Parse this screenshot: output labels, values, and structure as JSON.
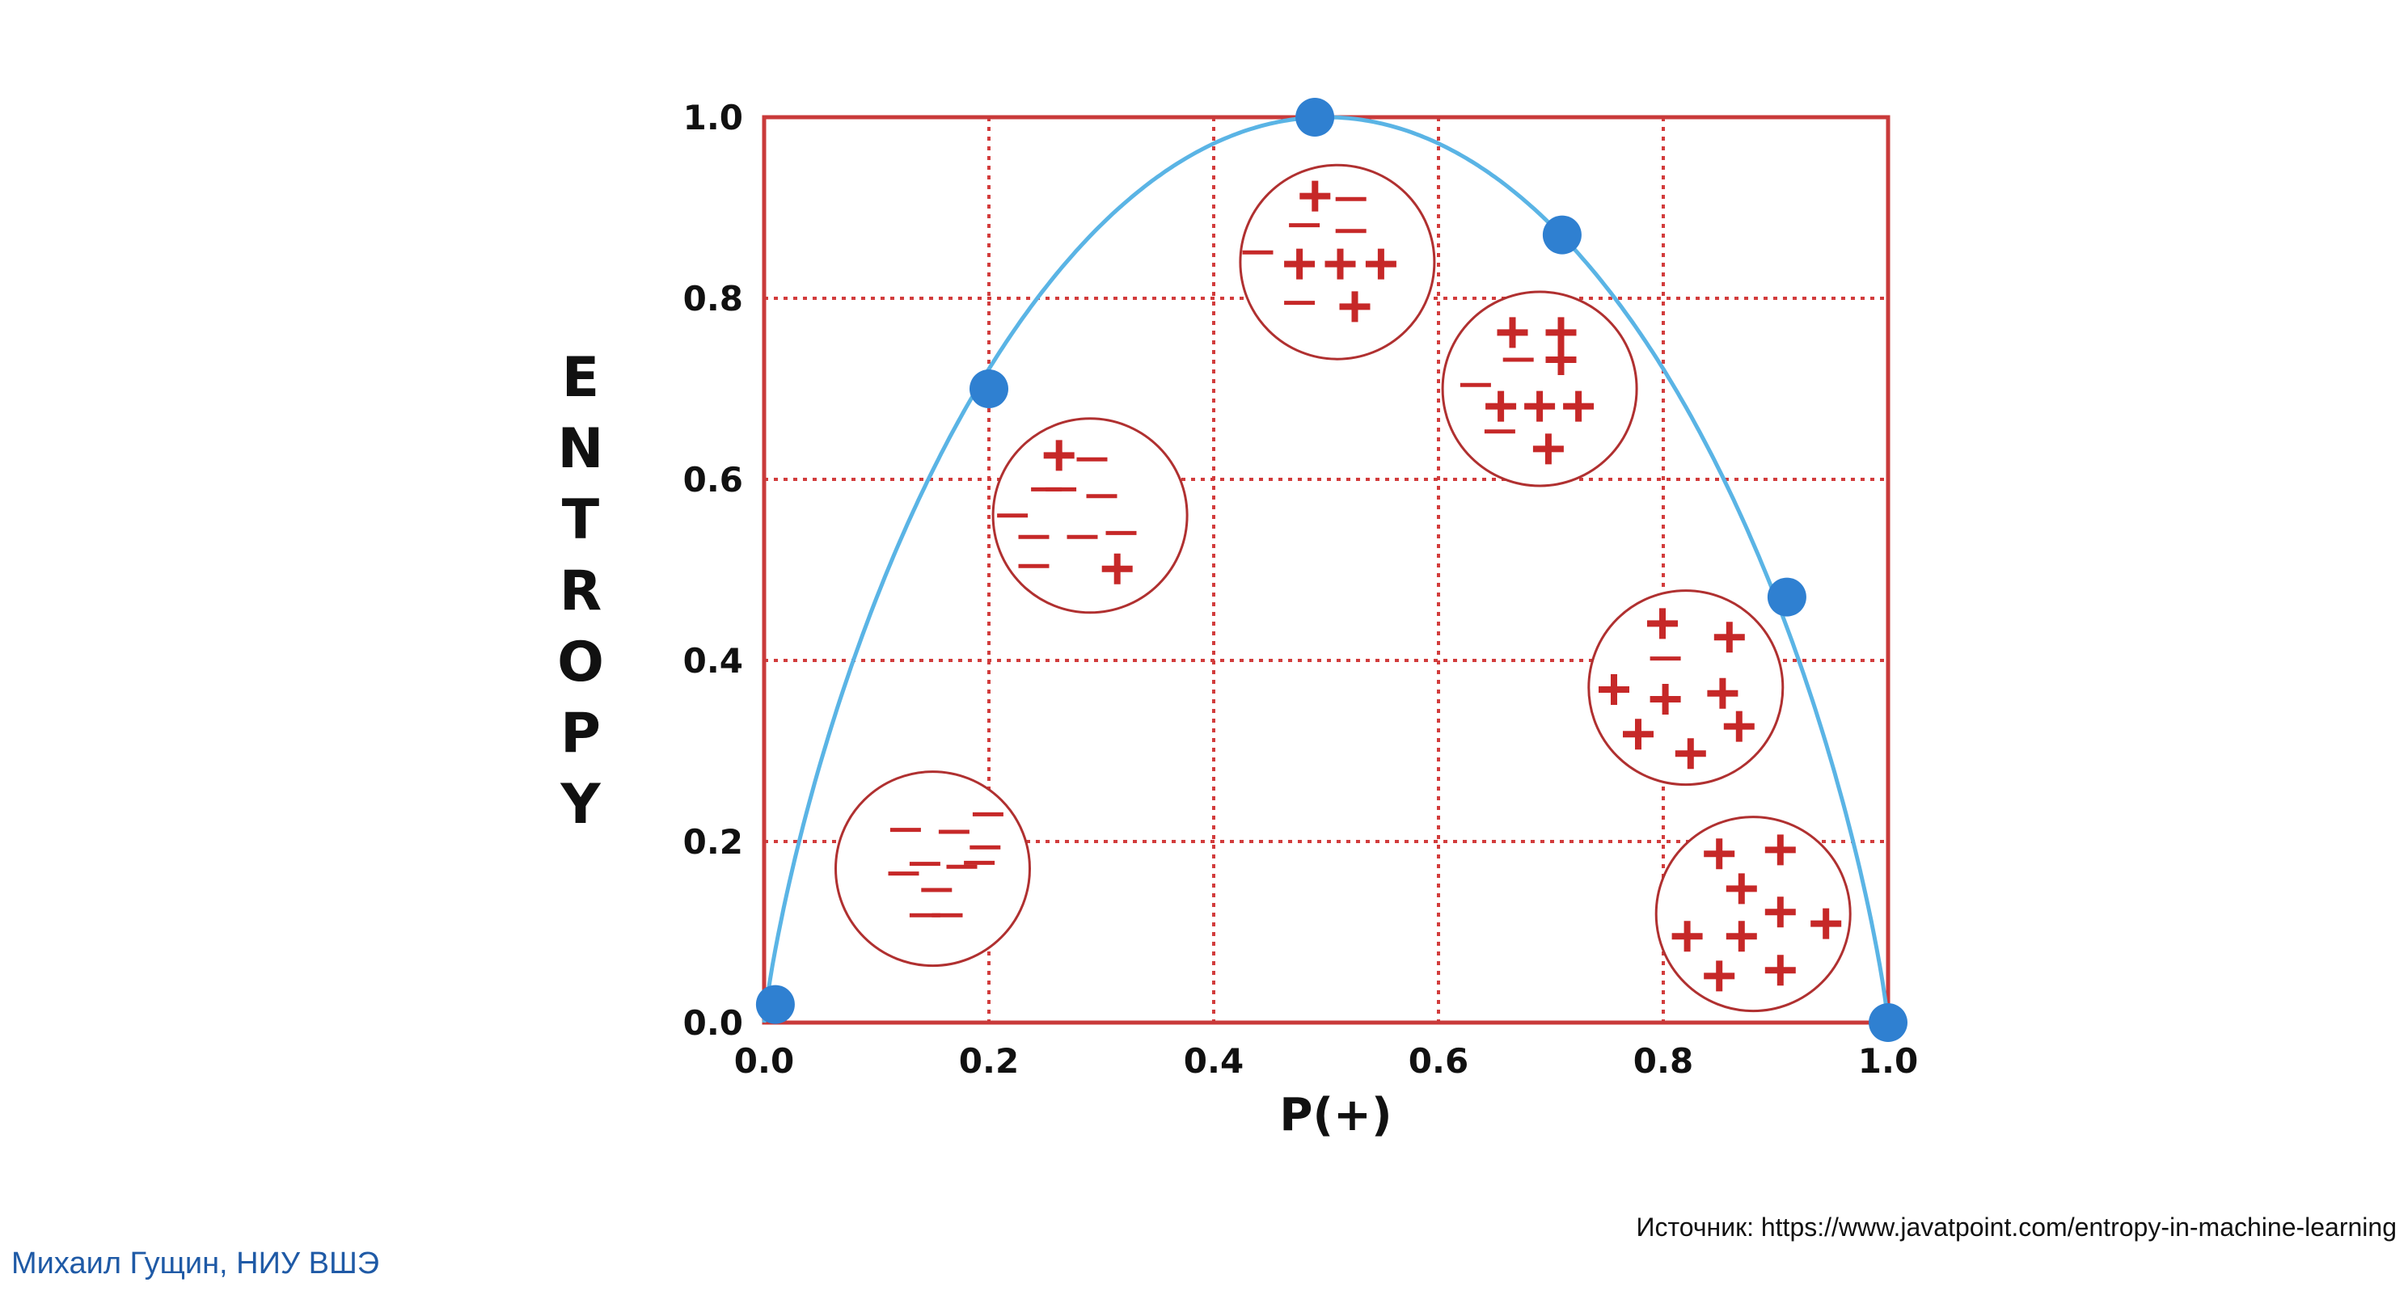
{
  "chart_data": {
    "type": "line",
    "xlabel": "P(+)",
    "ylabel": "ENTROPY",
    "xlim": [
      0.0,
      1.0
    ],
    "ylim": [
      0.0,
      1.0
    ],
    "x_ticks": [
      "0.0",
      "0.2",
      "0.4",
      "0.6",
      "0.8",
      "1.0"
    ],
    "y_ticks": [
      "0.0",
      "0.2",
      "0.4",
      "0.6",
      "0.8",
      "1.0"
    ],
    "grid": true,
    "grid_style": "dotted",
    "colors": {
      "curve": "#5ab4e5",
      "points": "#2f80d1",
      "frame": "#c93a3a",
      "grid": "#d23c3c",
      "symbols": "#c62828"
    },
    "curve": "binary entropy H(p) = -p·log2(p) - (1-p)·log2(1-p)",
    "points": [
      {
        "x": 0.01,
        "y": 0.02
      },
      {
        "x": 0.2,
        "y": 0.7
      },
      {
        "x": 0.49,
        "y": 1.0
      },
      {
        "x": 0.71,
        "y": 0.87
      },
      {
        "x": 0.91,
        "y": 0.47
      },
      {
        "x": 1.0,
        "y": 0.0
      }
    ],
    "samples": [
      {
        "name": "sample-circle-1",
        "cx": 0.15,
        "cy": 0.17,
        "items": [
          [
            "-",
            0.57,
            0.56
          ],
          [
            "-",
            0.54,
            0.22
          ],
          [
            "-",
            0.22,
            0.38
          ],
          [
            "-",
            -0.28,
            0.4
          ],
          [
            "-",
            0.3,
            0.02
          ],
          [
            "-",
            -0.08,
            0.05
          ],
          [
            "-",
            0.48,
            0.06
          ],
          [
            "-",
            -0.3,
            -0.05
          ],
          [
            "-",
            0.04,
            -0.22
          ],
          [
            "-",
            -0.08,
            -0.48
          ],
          [
            "-",
            0.15,
            -0.48
          ]
        ]
      },
      {
        "name": "sample-circle-2",
        "cx": 0.29,
        "cy": 0.56,
        "items": [
          [
            "+",
            -0.32,
            0.62
          ],
          [
            "-",
            0.02,
            0.58
          ],
          [
            "-",
            -0.45,
            0.27
          ],
          [
            "-",
            -0.3,
            0.27
          ],
          [
            "-",
            0.12,
            0.2
          ],
          [
            "-",
            -0.8,
            0.0
          ],
          [
            "-",
            -0.58,
            -0.22
          ],
          [
            "-",
            -0.08,
            -0.22
          ],
          [
            "-",
            0.32,
            -0.18
          ],
          [
            "-",
            -0.58,
            -0.52
          ],
          [
            "+",
            0.28,
            -0.55
          ]
        ]
      },
      {
        "name": "sample-circle-3",
        "cx": 0.51,
        "cy": 0.84,
        "items": [
          [
            "+",
            -0.23,
            0.68
          ],
          [
            "-",
            0.14,
            0.65
          ],
          [
            "-",
            -0.34,
            0.38
          ],
          [
            "-",
            0.14,
            0.32
          ],
          [
            "-",
            -0.82,
            0.1
          ],
          [
            "+",
            -0.39,
            -0.02
          ],
          [
            "+",
            0.03,
            -0.02
          ],
          [
            "+",
            0.45,
            -0.02
          ],
          [
            "-",
            -0.39,
            -0.42
          ],
          [
            "+",
            0.18,
            -0.46
          ]
        ]
      },
      {
        "name": "sample-circle-4",
        "cx": 0.69,
        "cy": 0.7,
        "items": [
          [
            "+",
            -0.28,
            0.58
          ],
          [
            "+",
            0.22,
            0.58
          ],
          [
            "-",
            -0.22,
            0.3
          ],
          [
            "+",
            0.22,
            0.3
          ],
          [
            "-",
            -0.66,
            0.04
          ],
          [
            "+",
            -0.4,
            -0.18
          ],
          [
            "+",
            0.0,
            -0.18
          ],
          [
            "+",
            0.4,
            -0.18
          ],
          [
            "-",
            -0.41,
            -0.44
          ],
          [
            "+",
            0.09,
            -0.62
          ]
        ]
      },
      {
        "name": "sample-circle-5",
        "cx": 0.82,
        "cy": 0.37,
        "items": [
          [
            "+",
            -0.24,
            0.66
          ],
          [
            "+",
            0.45,
            0.52
          ],
          [
            "-",
            -0.21,
            0.3
          ],
          [
            "+",
            -0.74,
            -0.02
          ],
          [
            "+",
            -0.21,
            -0.12
          ],
          [
            "+",
            0.38,
            -0.06
          ],
          [
            "+",
            -0.49,
            -0.48
          ],
          [
            "+",
            0.05,
            -0.68
          ],
          [
            "+",
            0.55,
            -0.4
          ]
        ]
      },
      {
        "name": "sample-circle-6",
        "cx": 0.88,
        "cy": 0.12,
        "items": [
          [
            "+",
            -0.35,
            0.62
          ],
          [
            "+",
            0.28,
            0.66
          ],
          [
            "+",
            -0.12,
            0.26
          ],
          [
            "+",
            0.28,
            0.02
          ],
          [
            "+",
            0.75,
            -0.1
          ],
          [
            "+",
            -0.68,
            -0.23
          ],
          [
            "+",
            -0.12,
            -0.23
          ],
          [
            "+",
            -0.35,
            -0.64
          ],
          [
            "+",
            0.28,
            -0.58
          ]
        ]
      }
    ]
  },
  "source_label": "Источник: https://www.javatpoint.com/entropy-in-machine-learning",
  "author_label": "Михаил Гущин, НИУ ВШЭ"
}
